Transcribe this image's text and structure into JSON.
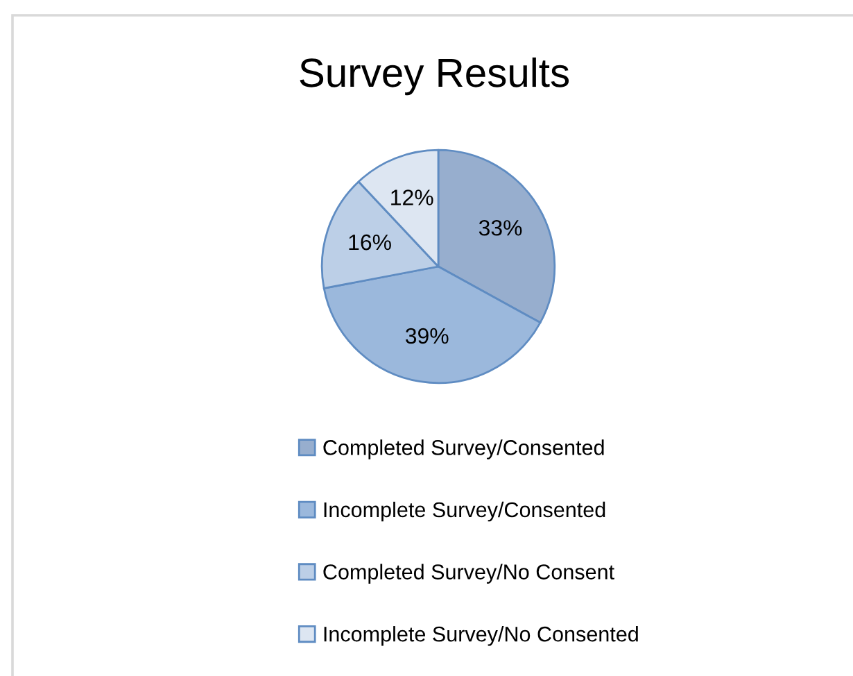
{
  "chart_data": {
    "type": "pie",
    "title": "Survey Results",
    "categories": [
      "Completed Survey/Consented",
      "Incomplete Survey/Consented",
      "Completed Survey/No Consent",
      "Incomplete Survey/No Consented"
    ],
    "values": [
      33,
      39,
      16,
      12
    ],
    "colors": [
      "#97aece",
      "#9bb8dc",
      "#bccfe7",
      "#dde6f2"
    ],
    "value_labels": [
      "33%",
      "39%",
      "16%",
      "12%"
    ],
    "legend": "bottom"
  }
}
